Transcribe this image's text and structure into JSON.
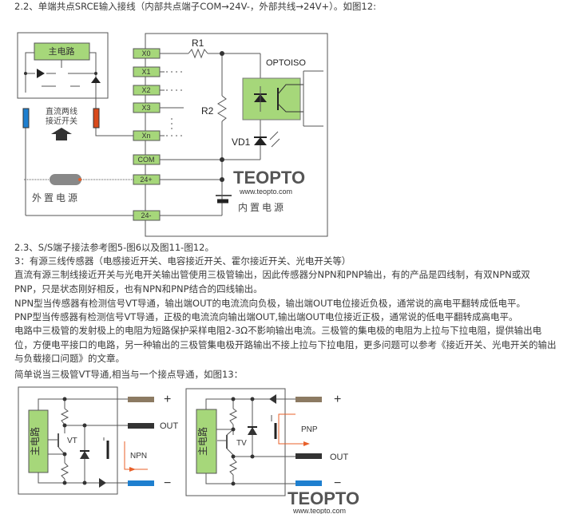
{
  "paragraphs": [
    "2.2、单端共点SRCE输入接线（内部共点端子COM→24V-，外部共线→24V+）。如图12:",
    "2.3、S/S端子接法参考图5-图6以及图11-图12。",
    "3：有源三线传感器（电感接近开关、电容接近开关、霍尔接近开关、光电开关等）",
    "直流有源三制线接近开关与光电开关输出管使用三极管输出，因此传感器分NPN和PNP输出，有的产品是四线制，有双NPN或双",
    "PNP，只是状态刚好相反，也有NPN和PNP结合的四线输出。",
    "NPN型当传感器有检测信号VT导通，输出端OUT的电流流向负极，输出端OUT电位接近负极，通常说的高电平翻转成低电平。",
    "PNP型当传感器有检测信号VT导通，正极的电流流向输出端OUT,输出端OUT电位接近正极，通常说的低电平翻转成高电平。",
    "电路中三极管的发射极上的电阻为短路保护采样电阻2-3Ω不影响输出电流。三极管的集电极的电阻为上拉与下拉电阻，提供输出电",
    "位，方便电平接口的电路，另一种输出的三极管集电极开路输出不接上拉与下拉电阻，更多问题可以参考《接近开关、光电开关的输出",
    "与负载接口问题》的文章。",
    "简单说当三极管VT导通,相当与一个接点导通，如图13："
  ],
  "fig12": {
    "main_circuit": "主电路",
    "sensor_label_1": "直流两线",
    "sensor_label_2": "接近开关",
    "terminals": [
      "X0",
      "X1",
      "X2",
      "X3",
      "Xn",
      "COM",
      "24+",
      "24-"
    ],
    "r1": "R1",
    "r2": "R2",
    "vd1": "VD1",
    "opto": "OPTOISO",
    "external_power": "外置电源",
    "internal_power": "内置电源",
    "logo": "TEOPTO",
    "logo_url": "www.teopto.com"
  },
  "fig13": {
    "main_circuit": "主电路",
    "npn": {
      "plus": "+",
      "out": "OUT",
      "minus": "−",
      "type": "NPN",
      "transistor": "VT"
    },
    "pnp": {
      "plus": "+",
      "out": "OUT",
      "minus": "−",
      "type": "PNP",
      "transistor": "TV"
    },
    "logo": "TEOPTO",
    "logo_url": "www.teopto.com"
  },
  "colors": {
    "terminal_green": "#a6d77a",
    "logo_orange": "#f08a2c",
    "logo_gray": "#555555",
    "wire_brown": "#8c7a62",
    "wire_blue": "#1e7fcf",
    "wire_red": "#d84a1b",
    "arrow": "#e8602a"
  }
}
